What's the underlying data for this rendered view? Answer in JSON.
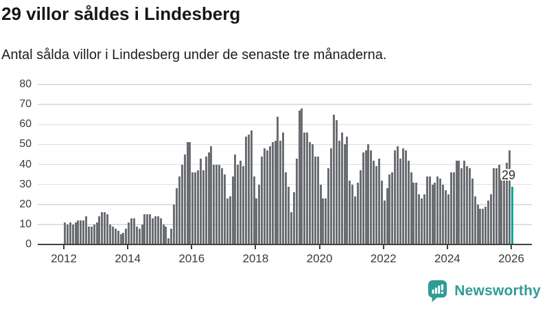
{
  "header": {
    "title": "29 villor såldes i Lindesberg",
    "subtitle": "Antal sålda villor i Lindesberg under de senaste tre månaderna."
  },
  "chart_data": {
    "type": "bar",
    "title": "29 villor såldes i Lindesberg",
    "subtitle": "Antal sålda villor i Lindesberg under de senaste tre månaderna.",
    "xlabel": "",
    "ylabel": "",
    "x_start": "2012-01",
    "frequency": "monthly",
    "ylim": [
      0,
      80
    ],
    "y_ticks": [
      0,
      10,
      20,
      30,
      40,
      50,
      60,
      70,
      80
    ],
    "x_tick_years": [
      2012,
      2014,
      2016,
      2018,
      2020,
      2022,
      2024,
      2026
    ],
    "grid": true,
    "bar_color": "#6a6d72",
    "highlight_color": "#00a49c",
    "highlight_index": 168,
    "highlight_label": "29",
    "values": [
      11,
      10,
      11,
      10,
      11,
      12,
      12,
      12,
      14,
      9,
      9,
      10,
      11,
      14,
      16,
      16,
      15,
      10,
      9,
      8,
      7,
      5,
      6,
      8,
      11,
      13,
      13,
      9,
      8,
      10,
      15,
      15,
      15,
      13,
      14,
      14,
      13,
      10,
      9,
      3,
      8,
      20,
      28,
      34,
      40,
      45,
      51,
      51,
      36,
      36,
      37,
      43,
      37,
      44,
      46,
      49,
      40,
      40,
      40,
      38,
      35,
      23,
      24,
      34,
      45,
      40,
      42,
      39,
      54,
      55,
      57,
      34,
      23,
      30,
      44,
      48,
      47,
      49,
      51,
      52,
      64,
      52,
      56,
      36,
      29,
      16,
      26,
      43,
      67,
      68,
      56,
      56,
      51,
      50,
      44,
      44,
      30,
      23,
      23,
      38,
      48,
      65,
      62,
      52,
      56,
      50,
      54,
      32,
      30,
      24,
      31,
      37,
      46,
      47,
      50,
      47,
      42,
      39,
      43,
      32,
      22,
      28,
      35,
      36,
      47,
      49,
      43,
      48,
      47,
      42,
      36,
      31,
      31,
      25,
      23,
      25,
      34,
      34,
      30,
      31,
      34,
      33,
      30,
      27,
      25,
      36,
      36,
      42,
      42,
      38,
      42,
      39,
      38,
      33,
      24,
      20,
      18,
      18,
      19,
      22,
      25,
      38,
      38,
      40,
      33,
      37,
      41,
      47,
      29
    ]
  },
  "footer": {
    "brand": "Newsworthy",
    "logo_icon": "bar-chart-speech-bubble-icon",
    "brand_color": "#2f9c94"
  }
}
